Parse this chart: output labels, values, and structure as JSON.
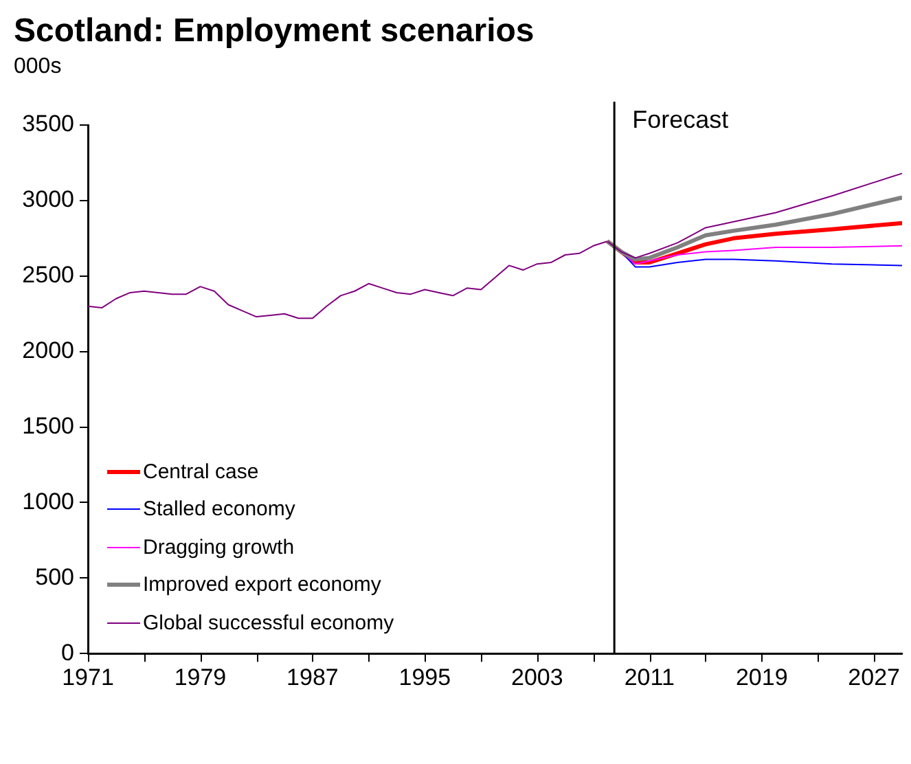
{
  "chart_data": {
    "type": "line",
    "title": "Scotland: Employment scenarios",
    "ylabel": "000s",
    "series": [
      {
        "color": "#800080",
        "x": [
          1971,
          1972,
          1973,
          1974,
          1975,
          1976,
          1977,
          1978,
          1979,
          1980,
          1981,
          1982,
          1983,
          1984,
          1985,
          1986,
          1987,
          1988,
          1989,
          1990,
          1991,
          1992,
          1993,
          1994,
          1995,
          1996,
          1997,
          1998,
          1999,
          2000,
          2001,
          2002,
          2003,
          2004,
          2005,
          2006,
          2007,
          2008
        ],
        "values": [
          2300,
          2290,
          2350,
          2390,
          2400,
          2390,
          2380,
          2380,
          2430,
          2400,
          2310,
          2270,
          2230,
          2240,
          2250,
          2220,
          2220,
          2300,
          2370,
          2400,
          2450,
          2420,
          2390,
          2380,
          2410,
          2390,
          2370,
          2420,
          2410,
          2490,
          2570,
          2540,
          2580,
          2590,
          2640,
          2650,
          2700,
          2730
        ]
      },
      {
        "name": "Central case",
        "color": "#ff0000",
        "x": [
          2008,
          2009,
          2010,
          2011,
          2013,
          2015,
          2017,
          2020,
          2024,
          2029
        ],
        "values": [
          2730,
          2660,
          2590,
          2590,
          2650,
          2710,
          2750,
          2780,
          2810,
          2850
        ]
      },
      {
        "name": "Stalled economy",
        "color": "#0000ff",
        "x": [
          2009,
          2010,
          2011,
          2013,
          2015,
          2017,
          2020,
          2024,
          2029
        ],
        "values": [
          2660,
          2560,
          2560,
          2590,
          2610,
          2610,
          2600,
          2580,
          2570
        ]
      },
      {
        "name": "Dragging growth",
        "color": "#ff00ff",
        "x": [
          2008,
          2009,
          2010,
          2011,
          2013,
          2015,
          2017,
          2020,
          2024,
          2029
        ],
        "values": [
          2730,
          2660,
          2580,
          2600,
          2640,
          2660,
          2670,
          2690,
          2690,
          2700
        ]
      },
      {
        "name": "Improved export economy",
        "color": "#808080",
        "x": [
          2008,
          2009,
          2010,
          2011,
          2013,
          2015,
          2017,
          2020,
          2024,
          2029
        ],
        "values": [
          2730,
          2660,
          2610,
          2620,
          2690,
          2770,
          2800,
          2840,
          2910,
          3020
        ]
      },
      {
        "name": "Global successful economy",
        "color": "#800080",
        "x": [
          2008,
          2009,
          2010,
          2011,
          2013,
          2015,
          2017,
          2020,
          2024,
          2029
        ],
        "values": [
          2730,
          2660,
          2620,
          2650,
          2720,
          2820,
          2860,
          2920,
          3030,
          3180
        ]
      }
    ],
    "xlim": [
      1971,
      2029
    ],
    "xticks": [
      1971,
      {
        "value": 1975,
        "label": null
      },
      1979,
      {
        "value": 1983,
        "label": null
      },
      1987,
      {
        "value": 1991,
        "label": null
      },
      1995,
      {
        "value": 1999,
        "label": null
      },
      2003,
      {
        "value": 2007,
        "label": null
      },
      2011,
      {
        "value": 2015,
        "label": null
      },
      2019,
      {
        "value": 2023,
        "label": null
      },
      2027
    ],
    "ylim": [
      0,
      3500
    ],
    "yticks": [
      0,
      500,
      1000,
      1500,
      2000,
      2500,
      3000,
      3500
    ],
    "ref_lines": [
      {
        "axis": "x",
        "value": 2008.5,
        "label": "Forecast"
      }
    ],
    "grid": false,
    "legend": "bottom left",
    "marker": "none",
    "line_style": "solid"
  }
}
